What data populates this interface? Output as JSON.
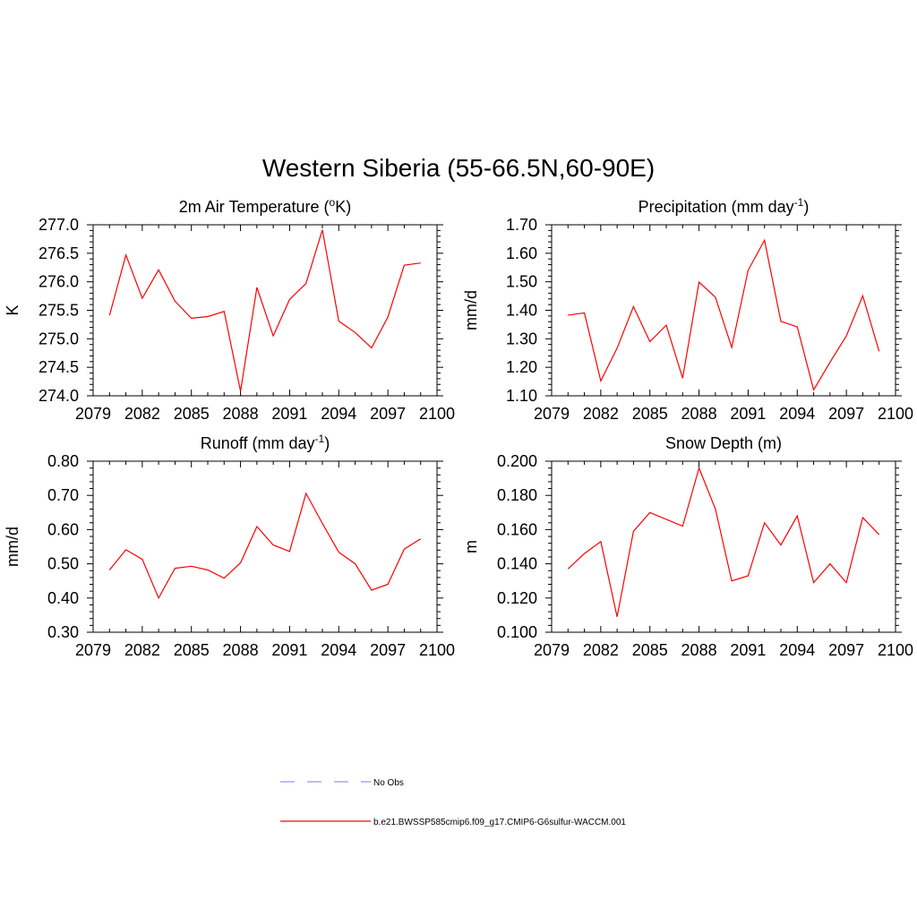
{
  "figure": {
    "title": "Western Siberia (55-66.5N,60-90E)"
  },
  "legend": {
    "entries": [
      {
        "label": "No Obs",
        "color": "#9999dd",
        "style": "dashed"
      },
      {
        "label": "b.e21.BWSSP585cmip6.f09_g17.CMIP6-G6sulfur-WACCM.001",
        "color": "#ff0000",
        "style": "solid"
      }
    ]
  },
  "chart_data": [
    {
      "type": "line",
      "title": "2m Air Temperature (",
      "title_sup": "o",
      "title_after": "K)",
      "xlabel": "",
      "ylabel": "K",
      "xlim": [
        2079,
        2100
      ],
      "ylim": [
        274.0,
        277.0
      ],
      "xticks": [
        "2079",
        "2082",
        "2085",
        "2088",
        "2091",
        "2094",
        "2097",
        "2100"
      ],
      "yticks": [
        "274.0",
        "274.5",
        "275.0",
        "275.5",
        "276.0",
        "276.5",
        "277.0"
      ],
      "x": [
        2080,
        2081,
        2082,
        2083,
        2084,
        2085,
        2086,
        2087,
        2088,
        2089,
        2090,
        2091,
        2092,
        2093,
        2094,
        2095,
        2096,
        2097,
        2098,
        2099
      ],
      "series": [
        {
          "color": "#ff0000",
          "values": [
            275.41,
            276.47,
            275.71,
            276.21,
            275.66,
            275.36,
            275.39,
            275.48,
            274.08,
            275.9,
            275.05,
            275.69,
            275.97,
            276.91,
            275.31,
            275.11,
            274.84,
            275.38,
            276.29,
            276.33
          ]
        }
      ]
    },
    {
      "type": "line",
      "title": "Precipitation (mm day",
      "title_sup": "-1",
      "title_after": ")",
      "xlabel": "",
      "ylabel": "mm/d",
      "xlim": [
        2079,
        2100
      ],
      "ylim": [
        1.1,
        1.7
      ],
      "xticks": [
        "2079",
        "2082",
        "2085",
        "2088",
        "2091",
        "2094",
        "2097",
        "2100"
      ],
      "yticks": [
        "1.10",
        "1.20",
        "1.30",
        "1.40",
        "1.50",
        "1.60",
        "1.70"
      ],
      "x": [
        2080,
        2081,
        2082,
        2083,
        2084,
        2085,
        2086,
        2087,
        2088,
        2089,
        2090,
        2091,
        2092,
        2093,
        2094,
        2095,
        2096,
        2097,
        2098,
        2099
      ],
      "series": [
        {
          "color": "#ff0000",
          "values": [
            1.383,
            1.391,
            1.152,
            1.267,
            1.413,
            1.29,
            1.348,
            1.162,
            1.499,
            1.446,
            1.27,
            1.54,
            1.646,
            1.361,
            1.342,
            1.121,
            1.218,
            1.31,
            1.451,
            1.256
          ]
        }
      ]
    },
    {
      "type": "line",
      "title": "Runoff (mm day",
      "title_sup": "-1",
      "title_after": ")",
      "xlabel": "",
      "ylabel": "mm/d",
      "xlim": [
        2079,
        2100
      ],
      "ylim": [
        0.3,
        0.8
      ],
      "xticks": [
        "2079",
        "2082",
        "2085",
        "2088",
        "2091",
        "2094",
        "2097",
        "2100"
      ],
      "yticks": [
        "0.30",
        "0.40",
        "0.50",
        "0.60",
        "0.70",
        "0.80"
      ],
      "x": [
        2080,
        2081,
        2082,
        2083,
        2084,
        2085,
        2086,
        2087,
        2088,
        2089,
        2090,
        2091,
        2092,
        2093,
        2094,
        2095,
        2096,
        2097,
        2098,
        2099
      ],
      "series": [
        {
          "color": "#ff0000",
          "values": [
            0.482,
            0.541,
            0.513,
            0.4,
            0.487,
            0.493,
            0.482,
            0.458,
            0.503,
            0.609,
            0.555,
            0.536,
            0.706,
            0.618,
            0.534,
            0.5,
            0.423,
            0.44,
            0.543,
            0.573
          ]
        }
      ]
    },
    {
      "type": "line",
      "title": "Snow Depth (m)",
      "title_sup": "",
      "title_after": "",
      "xlabel": "",
      "ylabel": "m",
      "xlim": [
        2079,
        2100
      ],
      "ylim": [
        0.1,
        0.2
      ],
      "xticks": [
        "2079",
        "2082",
        "2085",
        "2088",
        "2091",
        "2094",
        "2097",
        "2100"
      ],
      "yticks": [
        "0.100",
        "0.120",
        "0.140",
        "0.160",
        "0.180",
        "0.200"
      ],
      "x": [
        2080,
        2081,
        2082,
        2083,
        2084,
        2085,
        2086,
        2087,
        2088,
        2089,
        2090,
        2091,
        2092,
        2093,
        2094,
        2095,
        2096,
        2097,
        2098,
        2099
      ],
      "series": [
        {
          "color": "#ff0000",
          "values": [
            0.137,
            0.146,
            0.153,
            0.109,
            0.159,
            0.17,
            0.166,
            0.162,
            0.196,
            0.172,
            0.13,
            0.133,
            0.164,
            0.151,
            0.168,
            0.129,
            0.14,
            0.129,
            0.167,
            0.157
          ]
        }
      ]
    }
  ]
}
